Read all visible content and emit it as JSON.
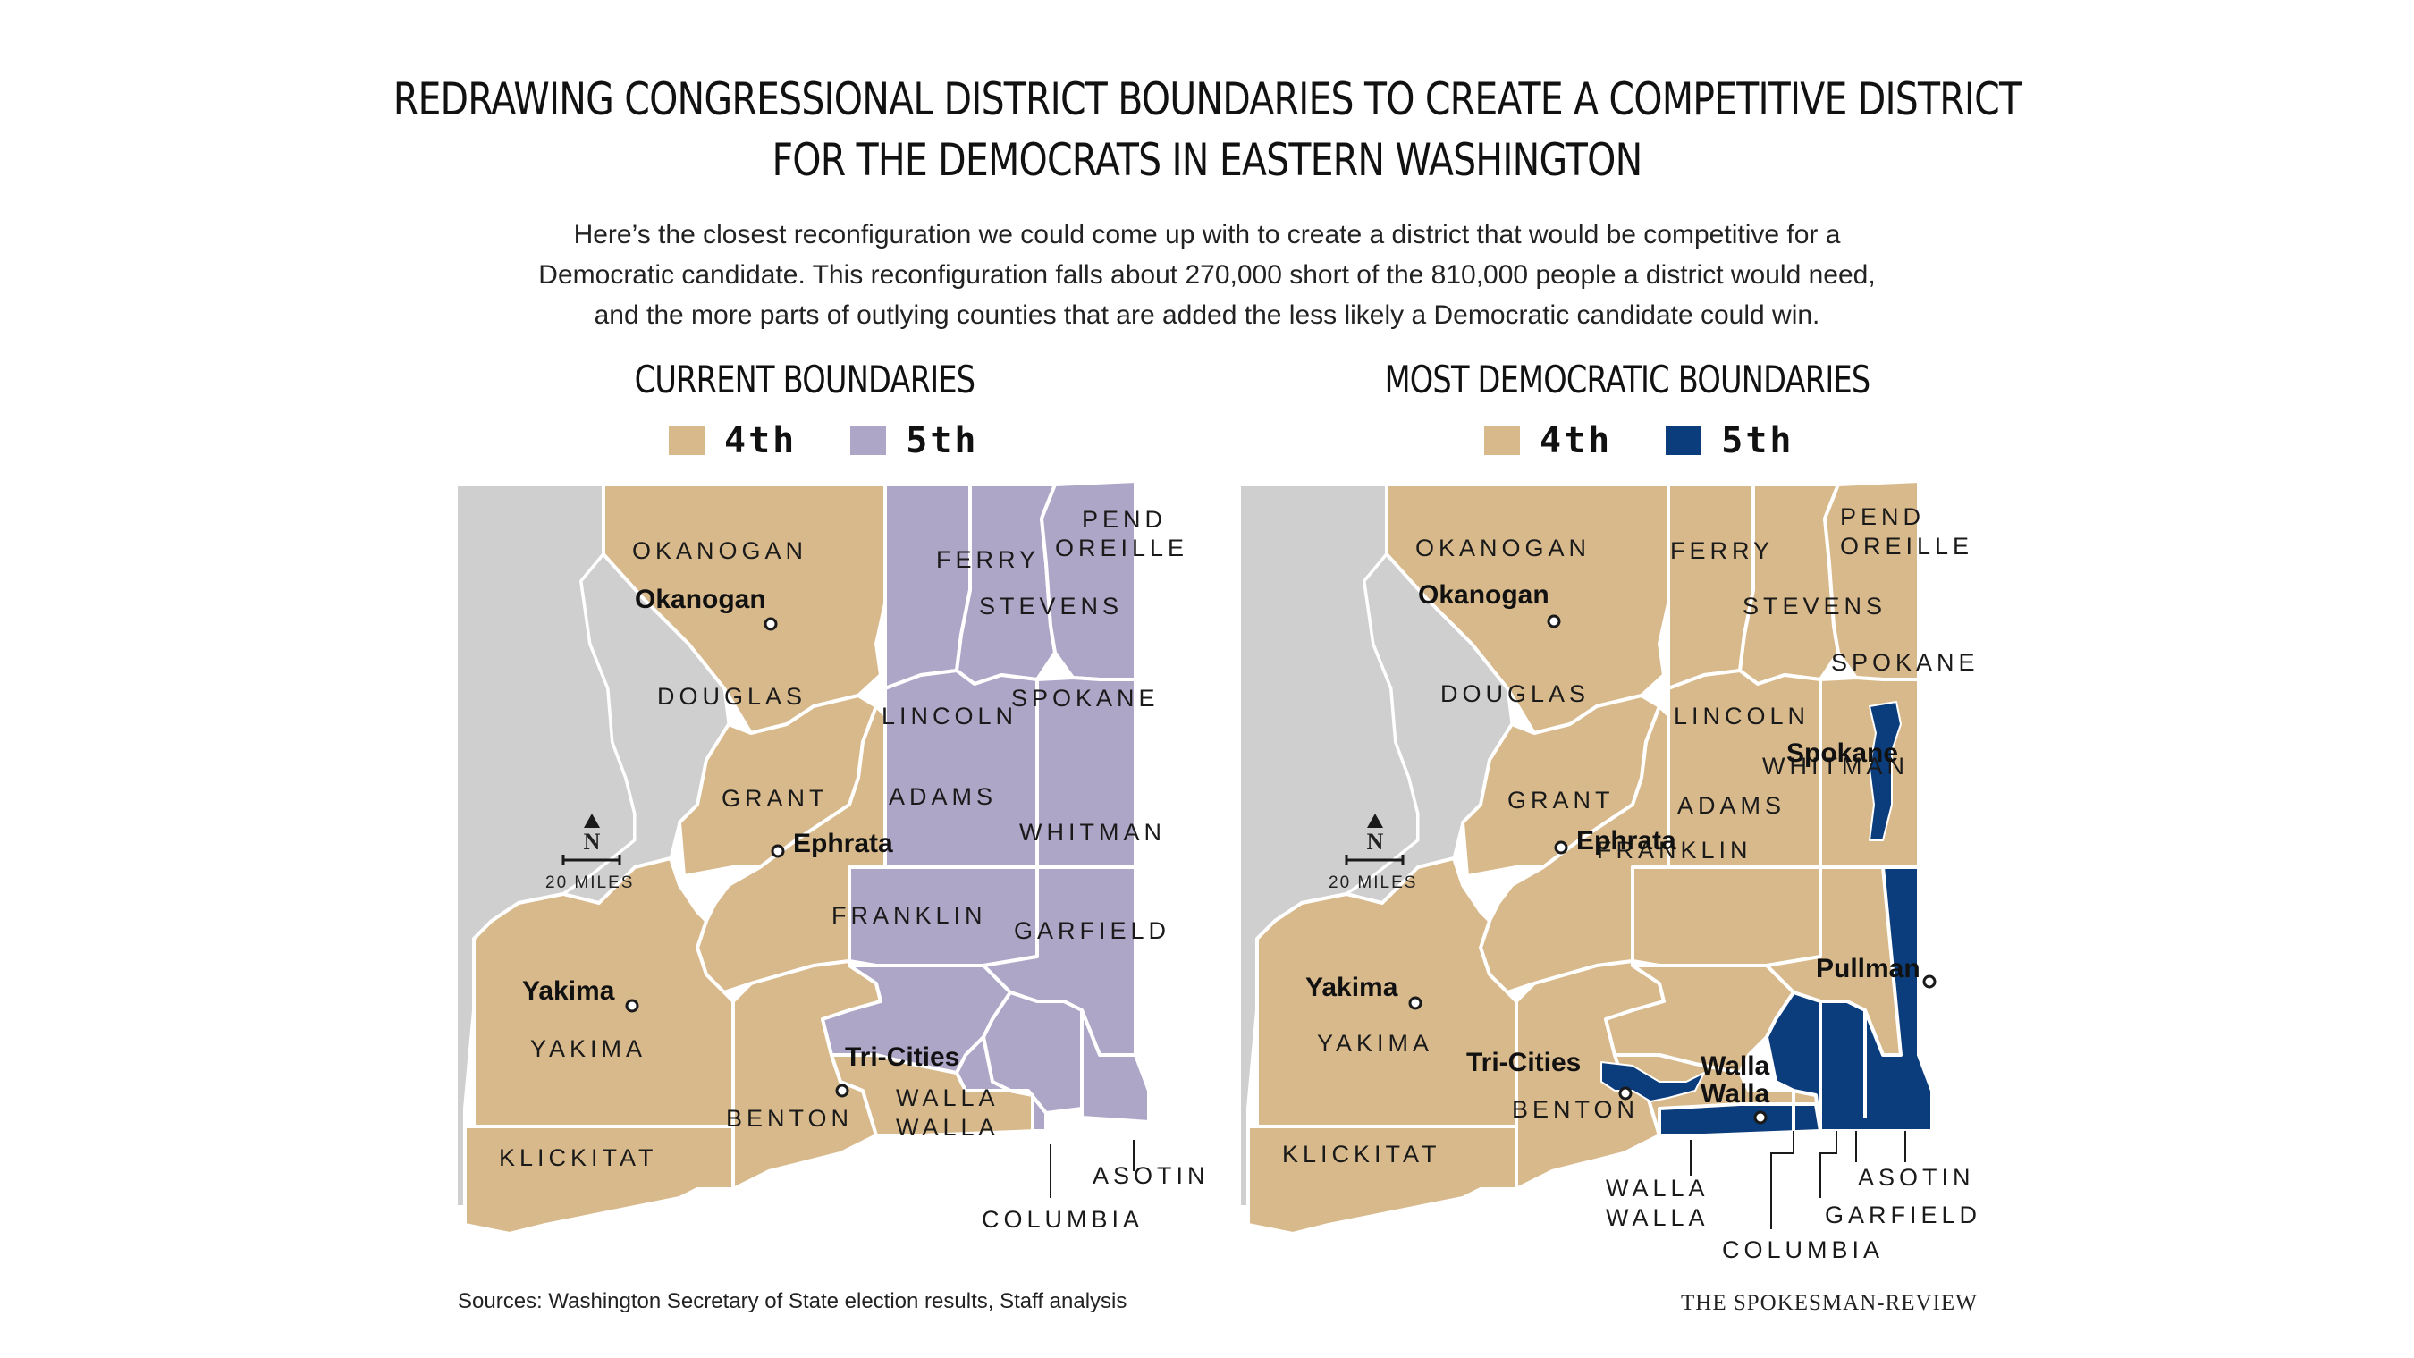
{
  "title_line1": "REDRAWING CONGRESSIONAL DISTRICT BOUNDARIES TO CREATE A COMPETITIVE DISTRICT",
  "title_line2": "FOR THE DEMOCRATS IN EASTERN WASHINGTON",
  "intro": [
    "Here’s the closest reconfiguration we could come up with to create a district that would be competitive for a",
    "Democratic candidate. This reconfiguration falls about 270,000 short of the 810,000 people a district would need,",
    "and the more parts of outlying counties that are added the less likely a Democratic candidate could win."
  ],
  "colors": {
    "tan": "#d8b98b",
    "lavender": "#aea6c7",
    "navy": "#0b3c7c",
    "gray": "#cfcfcf",
    "border": "#ffffff"
  },
  "left": {
    "heading": "CURRENT BOUNDARIES",
    "legend": [
      {
        "label": "4th",
        "color": "#d8b98b"
      },
      {
        "label": "5th",
        "color": "#aea6c7"
      }
    ],
    "counties": {
      "okanogan": "OKANOGAN",
      "ferry": "FERRY",
      "stevens": "STEVENS",
      "pend1": "PEND",
      "pend2": "OREILLE",
      "douglas": "DOUGLAS",
      "lincoln": "LINCOLN",
      "spokane": "SPOKANE",
      "grant": "GRANT",
      "adams": "ADAMS",
      "whitman": "WHITMAN",
      "franklin": "FRANKLIN",
      "garfield": "GARFIELD",
      "yakima": "YAKIMA",
      "benton": "BENTON",
      "walla1": "WALLA",
      "walla2": "WALLA",
      "klickitat": "KLICKITAT",
      "asotin": "ASOTIN",
      "columbia": "COLUMBIA"
    },
    "cities": {
      "okanogan": "Okanogan",
      "ephrata": "Ephrata",
      "yakima": "Yakima",
      "tricities": "Tri-Cities"
    },
    "north": "N",
    "scale": "20 MILES"
  },
  "right": {
    "heading": "MOST DEMOCRATIC BOUNDARIES",
    "legend": [
      {
        "label": "4th",
        "color": "#d8b98b"
      },
      {
        "label": "5th",
        "color": "#0b3c7c"
      }
    ],
    "counties": {
      "okanogan": "OKANOGAN",
      "ferry": "FERRY",
      "stevens": "STEVENS",
      "pend1": "PEND",
      "pend2": "OREILLE",
      "douglas": "DOUGLAS",
      "lincoln": "LINCOLN",
      "spokane": "SPOKANE",
      "grant": "GRANT",
      "adams": "ADAMS",
      "whitman": "WHITMAN",
      "franklin": "FRANKLIN",
      "garfield": "GARFIELD",
      "yakima": "YAKIMA",
      "benton": "BENTON",
      "walla1": "WALLA",
      "walla2": "WALLA",
      "klickitat": "KLICKITAT",
      "asotin": "ASOTIN",
      "columbia": "COLUMBIA"
    },
    "cities": {
      "okanogan": "Okanogan",
      "ephrata": "Ephrata",
      "yakima": "Yakima",
      "tricities": "Tri-Cities",
      "spokane": "Spokane",
      "pullman": "Pullman",
      "walla1": "Walla",
      "walla2": "Walla"
    },
    "north": "N",
    "scale": "20 MILES"
  },
  "footer": {
    "source": "Sources: Washington Secretary of State election results, Staff analysis",
    "brand": "THE SPOKESMAN-REVIEW"
  }
}
